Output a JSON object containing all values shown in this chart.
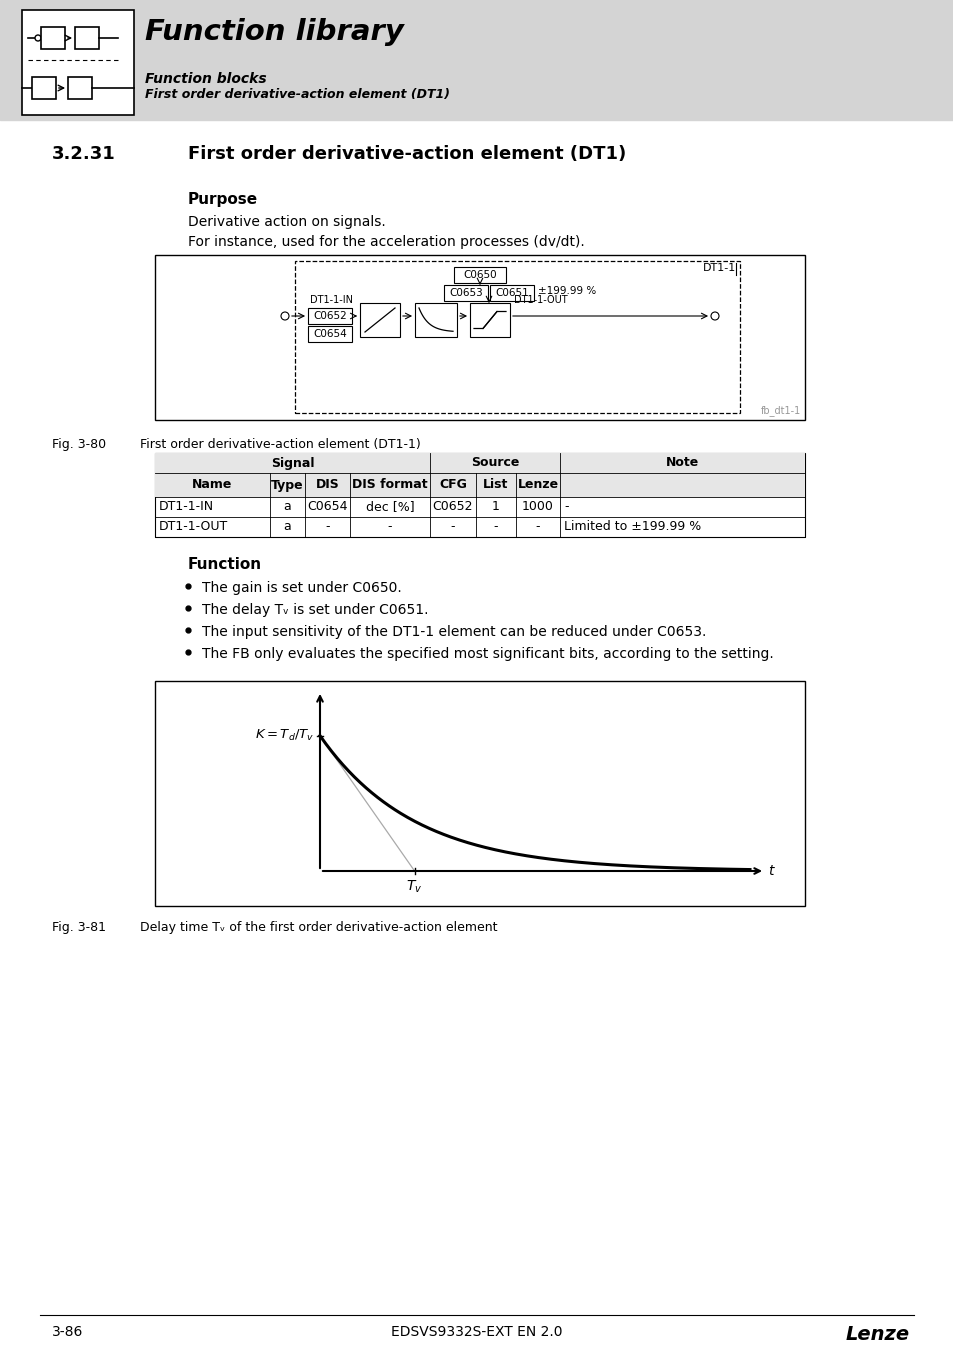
{
  "page_bg": "#ffffff",
  "header_bg": "#d4d4d4",
  "header_title": "Function library",
  "header_sub1": "Function blocks",
  "header_sub2": "First order derivative-action element (DT1)",
  "section_number": "3.2.31",
  "section_title": "First order derivative-action element (DT1)",
  "purpose_title": "Purpose",
  "purpose_line1": "Derivative action on signals.",
  "purpose_line2": "For instance, used for the acceleration processes (dv/dt).",
  "fig80_label": "Fig. 3-80",
  "fig80_caption": "First order derivative-action element (DT1-1)",
  "fig80_watermark": "fb_dt1-1",
  "table_headers_signal": "Signal",
  "table_headers_source": "Source",
  "table_headers_note": "Note",
  "table_col_headers": [
    "Name",
    "Type",
    "DIS",
    "DIS format",
    "CFG",
    "List",
    "Lenze"
  ],
  "table_row1": [
    "DT1-1-IN",
    "a",
    "C0654",
    "dec [%]",
    "C0652",
    "1",
    "1000",
    "-"
  ],
  "table_row2": [
    "DT1-1-OUT",
    "a",
    "-",
    "-",
    "-",
    "-",
    "-",
    "Limited to ±199.99 %"
  ],
  "function_title": "Function",
  "bullet1": "The gain is set under C0650.",
  "bullet2": "The delay Tᵥ is set under C0651.",
  "bullet3": "The input sensitivity of the DT1-1 element can be reduced under C0653.",
  "bullet4": "The FB only evaluates the specified most significant bits, according to the setting.",
  "fig81_label": "Fig. 3-81",
  "fig81_caption": "Delay time Tᵥ of the first order derivative-action element",
  "page_number": "3-86",
  "doc_number": "EDSVS9332S-EXT EN 2.0",
  "brand": "Lenze"
}
